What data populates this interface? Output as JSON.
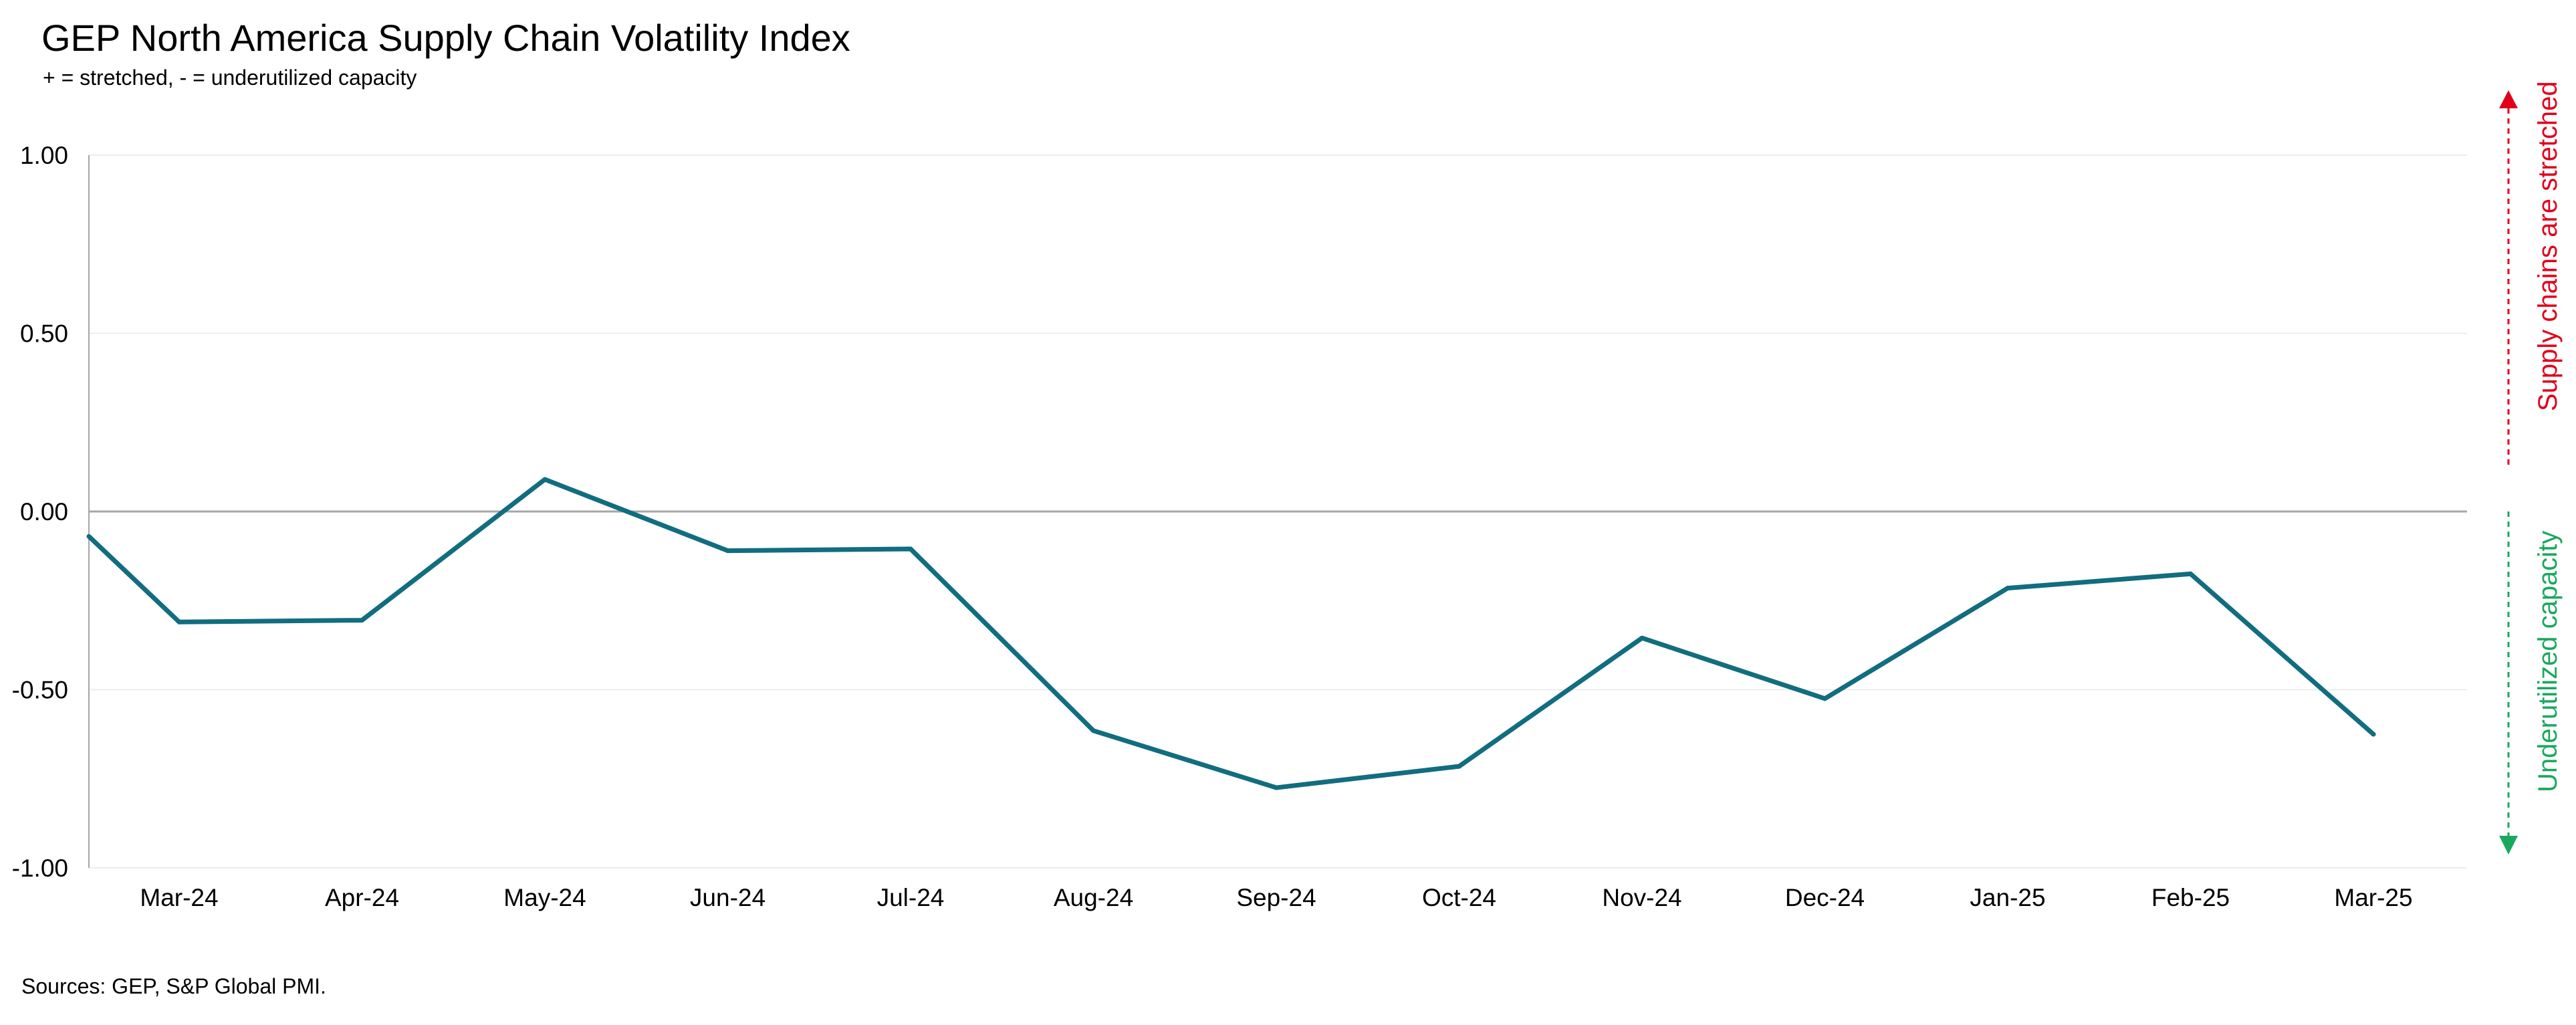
{
  "chart_data": {
    "type": "line",
    "title": "GEP North America Supply Chain Volatility Index",
    "subtitle": "+ = stretched, - = underutilized capacity",
    "xlabel": "",
    "ylabel": "",
    "ylim": [
      -1.0,
      1.0
    ],
    "y_ticks": [
      "1.00",
      "0.50",
      "0.00",
      "-0.50",
      "-1.00"
    ],
    "y_tick_values": [
      1.0,
      0.5,
      0.0,
      -0.5,
      -1.0
    ],
    "categories": [
      "Mar-24",
      "Apr-24",
      "May-24",
      "Jun-24",
      "Jul-24",
      "Aug-24",
      "Sep-24",
      "Oct-24",
      "Nov-24",
      "Dec-24",
      "Jan-25",
      "Feb-25",
      "Mar-25"
    ],
    "start_value": -0.07,
    "series": [
      {
        "values": [
          -0.31,
          -0.305,
          0.09,
          -0.11,
          -0.105,
          -0.615,
          -0.775,
          -0.715,
          -0.355,
          -0.525,
          -0.215,
          -0.175,
          -0.625
        ]
      }
    ],
    "grid": true,
    "colors": {
      "line": "#116d80",
      "axis": "#a6a6a6",
      "grid": "#ececec",
      "stretched": "#e0001a",
      "underutilized": "#1aa85c"
    }
  },
  "annotations": {
    "stretched": "Supply chains are stretched",
    "underutilized": "Underutilized capacity"
  },
  "source": "Sources: GEP, S&P Global PMI."
}
